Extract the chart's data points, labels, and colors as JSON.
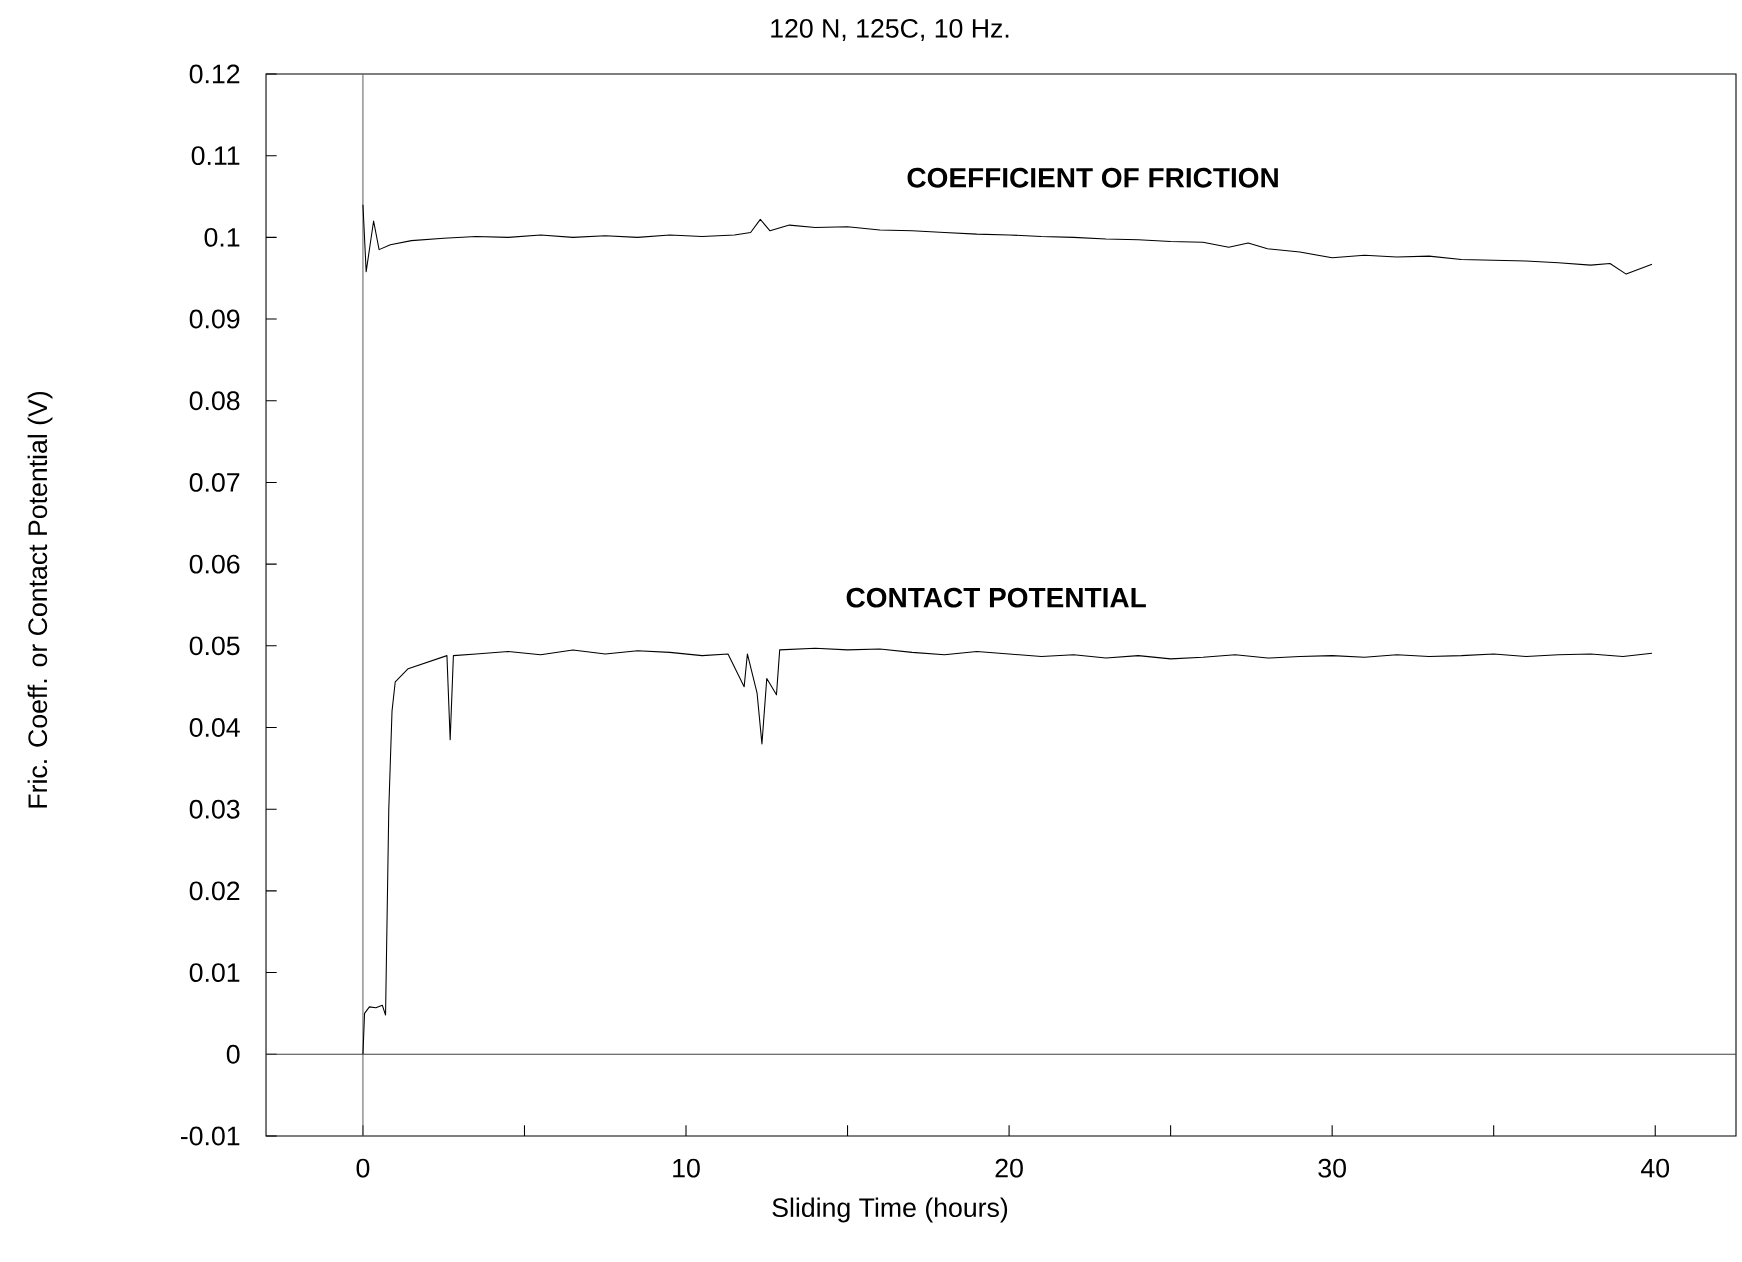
{
  "chart_data": {
    "type": "line",
    "title": "120 N, 125C, 10 Hz.",
    "xlabel": "Sliding Time (hours)",
    "ylabel": "Fric. Coeff. or Contact Potential (V)",
    "xlim": [
      -3,
      42.5
    ],
    "ylim": [
      -0.01,
      0.12
    ],
    "xticks": [
      0,
      {
        "value": 5,
        "label": null
      },
      10,
      {
        "value": 15,
        "label": null
      },
      20,
      {
        "value": 25,
        "label": null
      },
      30,
      {
        "value": 35,
        "label": null
      },
      40
    ],
    "yticks": [
      -0.01,
      0,
      0.01,
      0.02,
      0.03,
      0.04,
      0.05,
      0.06,
      0.07,
      0.08,
      0.09,
      0.1,
      0.11,
      0.12
    ],
    "grid": false,
    "legend": false,
    "marker": "none",
    "line_style": "solid",
    "ref_lines": [
      {
        "axis": "y",
        "value": 0,
        "color": "#404040"
      },
      {
        "axis": "x",
        "value": 0,
        "color": "#666666"
      }
    ],
    "series": [
      {
        "name": "COEFFICIENT OF FRICTION",
        "color": "#000000",
        "x": [
          0,
          0.1,
          0.33,
          0.5,
          0.85,
          1.5,
          2.5,
          3.5,
          4.5,
          5.5,
          6.5,
          7.5,
          8.5,
          9.5,
          10.5,
          11.5,
          12,
          12.3,
          12.6,
          13.2,
          14,
          15,
          16,
          17,
          18,
          19,
          20,
          21,
          22,
          23,
          24,
          25,
          26,
          26.8,
          27.4,
          28,
          29,
          30,
          31,
          32,
          33,
          34,
          35,
          36,
          37,
          38,
          38.6,
          39.1,
          39.5,
          39.9
        ],
        "values": [
          0.104,
          0.0958,
          0.102,
          0.0985,
          0.0991,
          0.0996,
          0.0999,
          0.1001,
          0.1,
          0.1003,
          0.1,
          0.1002,
          0.1,
          0.1003,
          0.1001,
          0.1003,
          0.1006,
          0.1022,
          0.1008,
          0.1015,
          0.1012,
          0.1013,
          0.1009,
          0.1008,
          0.1006,
          0.1004,
          0.1003,
          0.1001,
          0.1,
          0.0998,
          0.0997,
          0.0995,
          0.0994,
          0.0988,
          0.0993,
          0.0986,
          0.0982,
          0.0975,
          0.0978,
          0.0976,
          0.0977,
          0.0973,
          0.0972,
          0.0971,
          0.0969,
          0.0966,
          0.0968,
          0.0955,
          0.0961,
          0.0967
        ]
      },
      {
        "name": "CONTACT POTENTIAL",
        "color": "#000000",
        "x": [
          0,
          0.05,
          0.2,
          0.4,
          0.6,
          0.7,
          0.8,
          0.9,
          1.0,
          1.4,
          2,
          2.6,
          2.7,
          2.8,
          3.5,
          4.5,
          5.5,
          6.5,
          7.5,
          8.5,
          9.5,
          10.5,
          11.3,
          11.8,
          11.9,
          12.2,
          12.35,
          12.5,
          12.8,
          12.9,
          14,
          15,
          16,
          17,
          18,
          19,
          20,
          21,
          22,
          23,
          24,
          25,
          26,
          27,
          28,
          29,
          30,
          31,
          32,
          33,
          34,
          35,
          36,
          37,
          38,
          39,
          39.9
        ],
        "values": [
          0,
          0.005,
          0.0058,
          0.0057,
          0.006,
          0.0048,
          0.03,
          0.042,
          0.0456,
          0.0472,
          0.048,
          0.0488,
          0.0385,
          0.0488,
          0.049,
          0.0493,
          0.0489,
          0.0495,
          0.049,
          0.0494,
          0.0492,
          0.0488,
          0.049,
          0.045,
          0.049,
          0.0442,
          0.038,
          0.046,
          0.044,
          0.0495,
          0.0497,
          0.0495,
          0.0496,
          0.0492,
          0.0489,
          0.0493,
          0.049,
          0.0487,
          0.0489,
          0.0485,
          0.0488,
          0.0484,
          0.0486,
          0.0489,
          0.0485,
          0.0487,
          0.0488,
          0.0486,
          0.0489,
          0.0487,
          0.0488,
          0.049,
          0.0487,
          0.0489,
          0.049,
          0.0487,
          0.0491
        ]
      }
    ]
  }
}
